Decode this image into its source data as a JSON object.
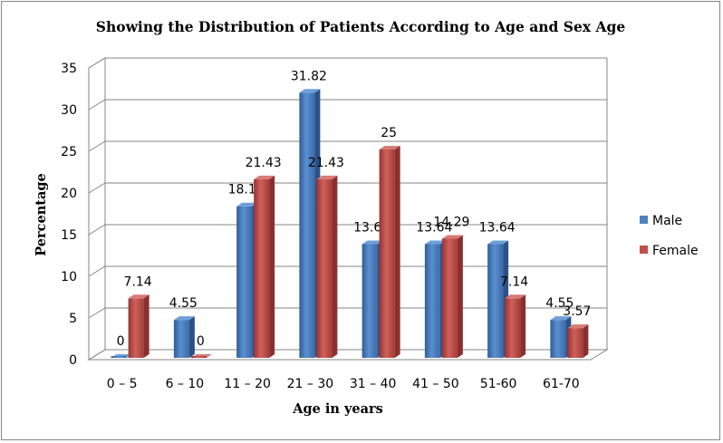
{
  "chart_data": {
    "type": "bar",
    "title": "Showing the Distribution of Patients According to Age and Sex Age",
    "xlabel": "Age in years",
    "ylabel": "Percentage",
    "ylim": [
      0,
      35
    ],
    "yticks": [
      0,
      5,
      10,
      15,
      20,
      25,
      30,
      35
    ],
    "grid": true,
    "legend_position": "right",
    "categories": [
      "0 – 5",
      "6 – 10",
      "11 – 20",
      "21 – 30",
      "31 – 40",
      "41 – 50",
      "51-60",
      "61-70"
    ],
    "series": [
      {
        "name": "Male",
        "color": "#4f81bd",
        "values": [
          0,
          4.55,
          18.18,
          31.82,
          13.64,
          13.64,
          13.64,
          4.55
        ]
      },
      {
        "name": "Female",
        "color": "#c0504d",
        "values": [
          7.14,
          0,
          21.43,
          21.43,
          25,
          14.29,
          7.14,
          3.57
        ]
      }
    ],
    "data_labels": [
      [
        "0",
        "4.55",
        "18.18",
        "31.82",
        "13.64",
        "13.64",
        "13.64",
        "4.55"
      ],
      [
        "7.14",
        "0",
        "21.43",
        "21.43",
        "25",
        "14.29",
        "7.14",
        "3.57"
      ]
    ]
  }
}
